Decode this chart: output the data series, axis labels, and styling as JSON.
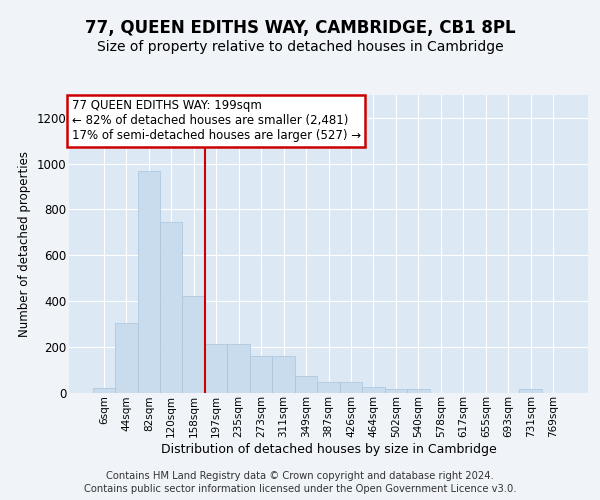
{
  "title": "77, QUEEN EDITHS WAY, CAMBRIDGE, CB1 8PL",
  "subtitle": "Size of property relative to detached houses in Cambridge",
  "xlabel": "Distribution of detached houses by size in Cambridge",
  "ylabel": "Number of detached properties",
  "bar_color": "#c8dced",
  "bar_edge_color": "#aac4da",
  "bar_categories": [
    "6sqm",
    "44sqm",
    "82sqm",
    "120sqm",
    "158sqm",
    "197sqm",
    "235sqm",
    "273sqm",
    "311sqm",
    "349sqm",
    "387sqm",
    "426sqm",
    "464sqm",
    "502sqm",
    "540sqm",
    "578sqm",
    "617sqm",
    "655sqm",
    "693sqm",
    "731sqm",
    "769sqm"
  ],
  "bar_values": [
    20,
    305,
    970,
    745,
    420,
    210,
    210,
    160,
    160,
    70,
    45,
    45,
    25,
    15,
    15,
    0,
    0,
    0,
    0,
    15,
    0
  ],
  "red_line_x": 4.5,
  "annotation_text": "77 QUEEN EDITHS WAY: 199sqm\n← 82% of detached houses are smaller (2,481)\n17% of semi-detached houses are larger (527) →",
  "annotation_box_color": "#ffffff",
  "annotation_box_edge": "#cc0000",
  "red_line_color": "#cc0000",
  "ylim": [
    0,
    1300
  ],
  "yticks": [
    0,
    200,
    400,
    600,
    800,
    1000,
    1200
  ],
  "footer_line1": "Contains HM Land Registry data © Crown copyright and database right 2024.",
  "footer_line2": "Contains public sector information licensed under the Open Government Licence v3.0.",
  "bg_color": "#f0f4f8",
  "plot_bg_color": "#dce9f5",
  "grid_color": "#ffffff"
}
